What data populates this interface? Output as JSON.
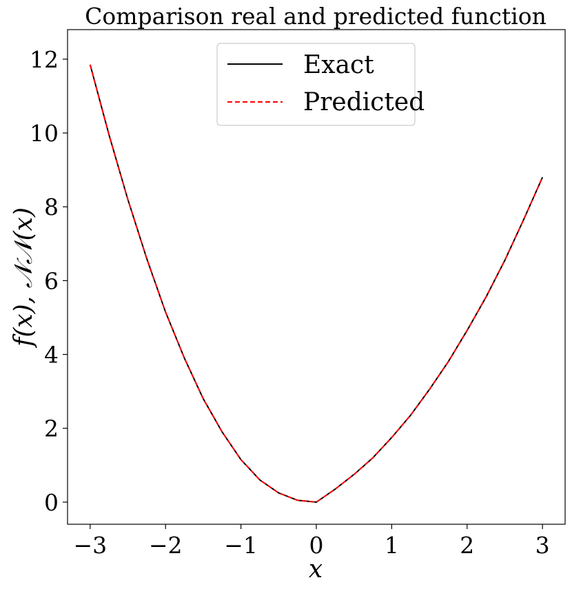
{
  "chart_data": {
    "type": "line",
    "title": "Comparison real and predicted function",
    "xlabel": "x",
    "ylabel": "f(x), 𝒩𝒩(x)",
    "xlim": [
      -3.3,
      3.3
    ],
    "ylim": [
      -0.6,
      12.8
    ],
    "xticks": [
      -3,
      -2,
      -1,
      0,
      1,
      2,
      3
    ],
    "xtick_labels": [
      "−3",
      "−2",
      "−1",
      "0",
      "1",
      "2",
      "3"
    ],
    "yticks": [
      0,
      2,
      4,
      6,
      8,
      10,
      12
    ],
    "ytick_labels": [
      "0",
      "2",
      "4",
      "6",
      "8",
      "10",
      "12"
    ],
    "grid": false,
    "legend": {
      "position": "top-center"
    },
    "x": [
      -3,
      -2.75,
      -2.5,
      -2.25,
      -2,
      -1.75,
      -1.5,
      -1.25,
      -1,
      -0.75,
      -0.5,
      -0.25,
      0,
      0.25,
      0.5,
      0.75,
      1,
      1.25,
      1.5,
      1.75,
      2,
      2.25,
      2.5,
      2.75,
      3
    ],
    "series": [
      {
        "name": "Exact",
        "color": "#000000",
        "style": "solid",
        "values": [
          11.85,
          9.95,
          8.2,
          6.6,
          5.15,
          3.9,
          2.8,
          1.9,
          1.15,
          0.6,
          0.25,
          0.05,
          0.0,
          0.35,
          0.75,
          1.2,
          1.75,
          2.35,
          3.05,
          3.8,
          4.65,
          5.55,
          6.55,
          7.65,
          8.8
        ]
      },
      {
        "name": "Predicted",
        "color": "#ff0000",
        "style": "dashed",
        "values": [
          11.85,
          9.95,
          8.2,
          6.6,
          5.15,
          3.9,
          2.8,
          1.9,
          1.15,
          0.6,
          0.25,
          0.05,
          0.0,
          0.35,
          0.75,
          1.2,
          1.75,
          2.35,
          3.05,
          3.8,
          4.65,
          5.55,
          6.55,
          7.65,
          8.8
        ]
      }
    ]
  }
}
